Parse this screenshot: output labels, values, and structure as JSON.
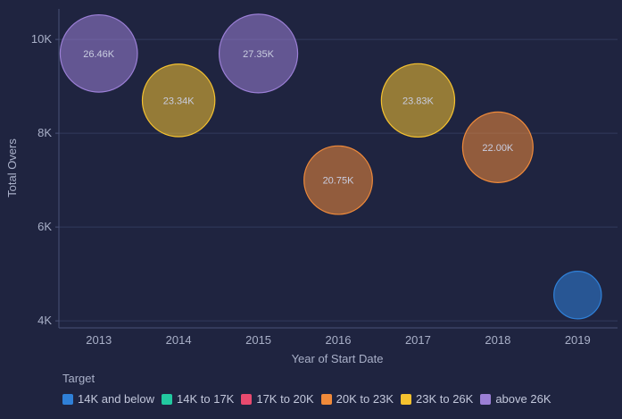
{
  "chart_data": {
    "type": "scatter",
    "xlabel": "Year of Start Date",
    "ylabel": "Total Overs",
    "x_ticks": [
      "2013",
      "2014",
      "2015",
      "2016",
      "2017",
      "2018",
      "2019"
    ],
    "y_ticks": [
      {
        "value": 4000,
        "label": "4K"
      },
      {
        "value": 6000,
        "label": "6K"
      },
      {
        "value": 8000,
        "label": "8K"
      },
      {
        "value": 10000,
        "label": "10K"
      }
    ],
    "ylim": [
      3850,
      10650
    ],
    "grid": true,
    "points": [
      {
        "x": "2013",
        "y": 9700,
        "size": 26460,
        "label": "26.46K",
        "group": "above 26K"
      },
      {
        "x": "2014",
        "y": 8700,
        "size": 23340,
        "label": "23.34K",
        "group": "23K to 26K"
      },
      {
        "x": "2015",
        "y": 9700,
        "size": 27350,
        "label": "27.35K",
        "group": "above 26K"
      },
      {
        "x": "2016",
        "y": 7000,
        "size": 20750,
        "label": "20.75K",
        "group": "20K to 23K"
      },
      {
        "x": "2017",
        "y": 8700,
        "size": 23830,
        "label": "23.83K",
        "group": "23K to 26K"
      },
      {
        "x": "2018",
        "y": 7700,
        "size": 22000,
        "label": "22.00K",
        "group": "20K to 23K"
      },
      {
        "x": "2019",
        "y": 4550,
        "size": 10000,
        "label": "",
        "group": "14K and below"
      }
    ],
    "legend": {
      "title": "Target",
      "placement": "bottom-left",
      "items": [
        {
          "label": "14K and below",
          "color": "#2f80d8"
        },
        {
          "label": "14K to 17K",
          "color": "#22c9a0"
        },
        {
          "label": "17K to 20K",
          "color": "#e84a6f"
        },
        {
          "label": "20K to 23K",
          "color": "#f08a3a"
        },
        {
          "label": "23K to 26K",
          "color": "#f5c22f"
        },
        {
          "label": "above 26K",
          "color": "#9b7fd6"
        }
      ]
    }
  }
}
